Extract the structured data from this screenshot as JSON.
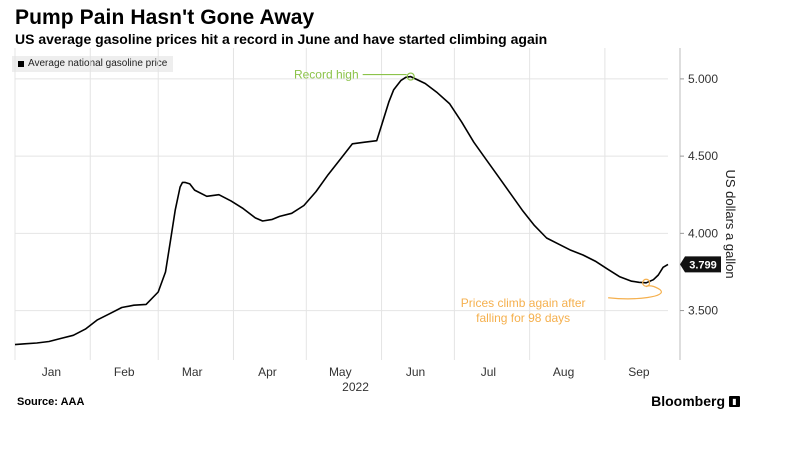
{
  "header": {
    "title": "Pump Pain Hasn't Gone Away",
    "subtitle": "US average gasoline prices hit a record in June and have started climbing again"
  },
  "legend": {
    "label": "Average national gasoline price"
  },
  "footer": {
    "source": "Source: AAA",
    "brand": "Bloomberg",
    "brand_icon": "bloomberg-terminal-icon"
  },
  "colors": {
    "line": "#000000",
    "grid": "#e4e4e4",
    "record": "#8cc34a",
    "climb": "#f5b04e"
  },
  "chart_data": {
    "type": "line",
    "title": "Pump Pain Hasn't Gone Away",
    "subtitle": "US average gasoline prices hit a record in June and have started climbing again",
    "xlabel": "2022",
    "ylabel": "US dollars a gallon",
    "xlim": [
      1,
      270
    ],
    "ylim": [
      3.18,
      5.2
    ],
    "yticks": [
      3.5,
      4.0,
      4.5,
      5.0
    ],
    "ytick_labels": [
      "3.500",
      "4.000",
      "4.500",
      "5.000"
    ],
    "xticks": [
      {
        "day": 16,
        "label": "Jan"
      },
      {
        "day": 46,
        "label": "Feb"
      },
      {
        "day": 74,
        "label": "Mar"
      },
      {
        "day": 105,
        "label": "Apr"
      },
      {
        "day": 135,
        "label": "May"
      },
      {
        "day": 166,
        "label": "Jun"
      },
      {
        "day": 196,
        "label": "Jul"
      },
      {
        "day": 227,
        "label": "Aug"
      },
      {
        "day": 258,
        "label": "Sep"
      }
    ],
    "gridlines_x_days": [
      1,
      32,
      60,
      91,
      121,
      152,
      182,
      213,
      244
    ],
    "x_year_label": "2022",
    "series": [
      {
        "name": "Average national gasoline price",
        "x": [
          1,
          5,
          10,
          15,
          20,
          25,
          30,
          35,
          40,
          45,
          50,
          55,
          60,
          63,
          65,
          67,
          69,
          70,
          71,
          73,
          75,
          80,
          85,
          90,
          95,
          100,
          103,
          107,
          110,
          115,
          120,
          125,
          130,
          135,
          140,
          145,
          150,
          152,
          155,
          157,
          160,
          162,
          164,
          166,
          170,
          175,
          180,
          185,
          190,
          195,
          200,
          205,
          210,
          215,
          220,
          225,
          230,
          235,
          240,
          245,
          250,
          255,
          258,
          261,
          264,
          266,
          268,
          270
        ],
        "values": [
          3.28,
          3.285,
          3.29,
          3.3,
          3.32,
          3.34,
          3.38,
          3.44,
          3.48,
          3.52,
          3.535,
          3.54,
          3.62,
          3.75,
          3.95,
          4.15,
          4.3,
          4.33,
          4.33,
          4.32,
          4.28,
          4.24,
          4.25,
          4.21,
          4.16,
          4.1,
          4.08,
          4.09,
          4.11,
          4.13,
          4.18,
          4.27,
          4.38,
          4.48,
          4.58,
          4.59,
          4.6,
          4.7,
          4.85,
          4.93,
          4.99,
          5.01,
          5.015,
          5.0,
          4.97,
          4.91,
          4.84,
          4.72,
          4.59,
          4.48,
          4.37,
          4.26,
          4.15,
          4.05,
          3.97,
          3.93,
          3.89,
          3.86,
          3.82,
          3.77,
          3.72,
          3.69,
          3.683,
          3.68,
          3.7,
          3.73,
          3.78,
          3.799
        ]
      }
    ],
    "last_value": 3.799,
    "last_value_label": "3.799",
    "annotations": [
      {
        "text": "Record high",
        "day": 164,
        "value": 5.015,
        "color": "#8cc34a"
      },
      {
        "lines": [
          "Prices climb again after",
          "falling for 98 days"
        ],
        "day": 261,
        "value": 3.68,
        "color": "#f5b04e"
      }
    ]
  }
}
